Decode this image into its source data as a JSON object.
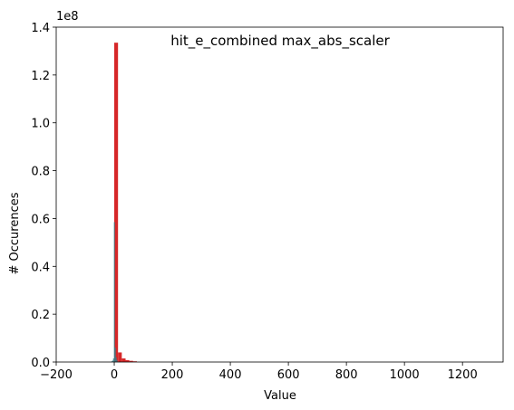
{
  "chart_data": {
    "type": "bar",
    "title": "hit_e_combined max_abs_scaler",
    "xlabel": "Value",
    "ylabel": "# Occurences",
    "y_offset_text": "1e8",
    "xlim": [
      -200,
      1340
    ],
    "ylim": [
      0,
      1.4
    ],
    "x_ticks": [
      -200,
      0,
      200,
      400,
      600,
      800,
      1000,
      1200
    ],
    "x_tick_labels": [
      "−200",
      "0",
      "200",
      "400",
      "600",
      "800",
      "1000",
      "1200"
    ],
    "y_ticks": [
      0.0,
      0.2,
      0.4,
      0.6,
      0.8,
      1.0,
      1.2,
      1.4
    ],
    "y_tick_labels": [
      "0.0",
      "0.2",
      "0.4",
      "0.6",
      "0.8",
      "1.0",
      "1.2",
      "1.4"
    ],
    "grid": false,
    "colors": {
      "red": "#d62728",
      "teal": "#3a7d88",
      "axis": "#000000"
    },
    "series": [
      {
        "color": "#d62728",
        "bins": [
          {
            "x0": 0,
            "x1": 13,
            "value": 1.335
          },
          {
            "x0": 13,
            "x1": 26,
            "value": 0.04
          },
          {
            "x0": 26,
            "x1": 39,
            "value": 0.015
          },
          {
            "x0": 39,
            "x1": 52,
            "value": 0.008
          },
          {
            "x0": 52,
            "x1": 65,
            "value": 0.005
          },
          {
            "x0": 65,
            "x1": 78,
            "value": 0.003
          }
        ]
      },
      {
        "color": "#3a7d88",
        "bins": [
          {
            "x0": -10,
            "x1": -7,
            "value": 0.003
          },
          {
            "x0": -7,
            "x1": -4,
            "value": 0.006
          },
          {
            "x0": -4,
            "x1": -1,
            "value": 0.015
          },
          {
            "x0": -1,
            "x1": 2,
            "value": 0.585
          },
          {
            "x0": 2,
            "x1": 5,
            "value": 0.06
          },
          {
            "x0": 5,
            "x1": 8,
            "value": 0.02
          },
          {
            "x0": 8,
            "x1": 11,
            "value": 0.008
          }
        ]
      }
    ]
  }
}
